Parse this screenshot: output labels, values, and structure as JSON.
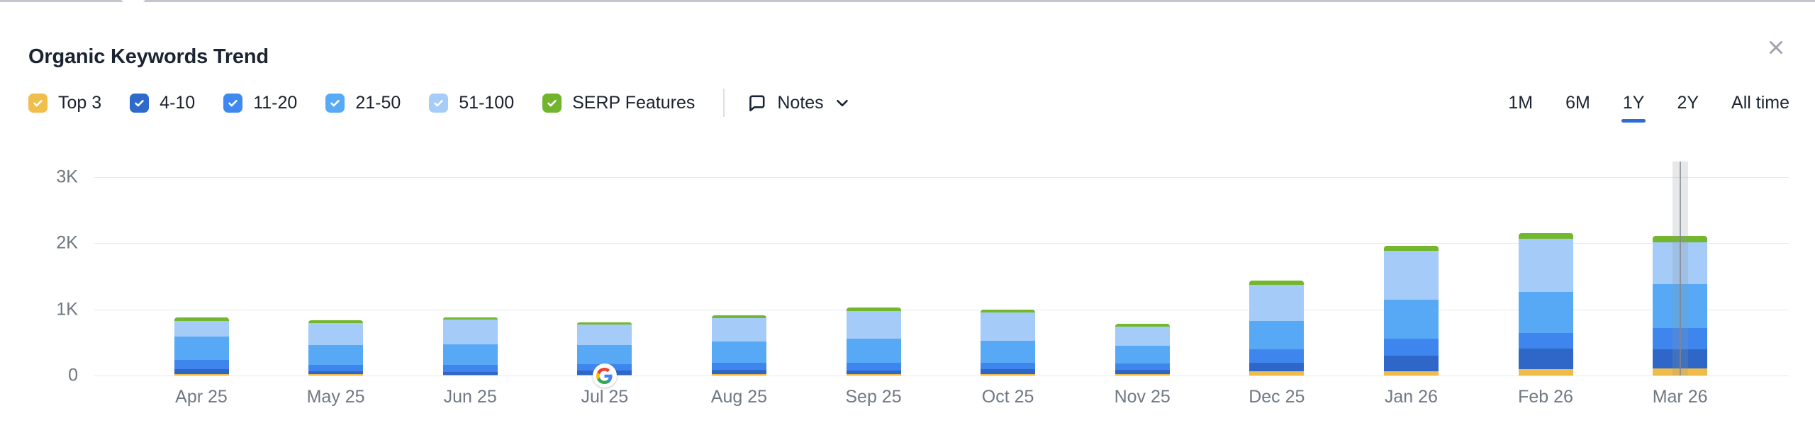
{
  "header": {
    "title": "Organic Keywords Trend",
    "close": "close"
  },
  "legend": {
    "items": [
      {
        "label": "Top 3",
        "color": "#F0BE4B",
        "checked": true
      },
      {
        "label": "4-10",
        "color": "#2E6ACB",
        "checked": true
      },
      {
        "label": "11-20",
        "color": "#3F88EF",
        "checked": true
      },
      {
        "label": "21-50",
        "color": "#58AAF5",
        "checked": true
      },
      {
        "label": "51-100",
        "color": "#A6CCF8",
        "checked": true
      },
      {
        "label": "SERP Features",
        "color": "#72B52D",
        "checked": true
      }
    ]
  },
  "notes": {
    "label": "Notes"
  },
  "time_ranges": {
    "options": [
      "1M",
      "6M",
      "1Y",
      "2Y",
      "All time"
    ],
    "active": "1Y",
    "accent": "#2E6BD9"
  },
  "chart_data": {
    "type": "bar",
    "stacked": true,
    "title": "Organic Keywords Trend",
    "xlabel": "",
    "ylabel": "",
    "ylim": [
      0,
      3200
    ],
    "grid": "horizontal",
    "legend_position": "top-left",
    "y_ticks": [
      {
        "label": "0",
        "value": 0
      },
      {
        "label": "1K",
        "value": 1000
      },
      {
        "label": "2K",
        "value": 2000
      },
      {
        "label": "3K",
        "value": 3000
      }
    ],
    "categories": [
      "Apr 25",
      "May 25",
      "Jun 25",
      "Jul 25",
      "Aug 25",
      "Sep 25",
      "Oct 25",
      "Nov 25",
      "Dec 25",
      "Jan 26",
      "Feb 26",
      "Mar 26"
    ],
    "series": [
      {
        "name": "Top 3",
        "color": "#F0BC49",
        "values": [
          20,
          18,
          14,
          11,
          18,
          25,
          18,
          25,
          64,
          64,
          100,
          105
        ]
      },
      {
        "name": "4-10",
        "color": "#2E67C8",
        "values": [
          75,
          47,
          43,
          61,
          72,
          54,
          82,
          64,
          130,
          235,
          305,
          290
        ]
      },
      {
        "name": "11-20",
        "color": "#3E86EE",
        "values": [
          140,
          94,
          107,
          97,
          107,
          118,
          97,
          97,
          205,
          260,
          235,
          320
        ]
      },
      {
        "name": "21-50",
        "color": "#57A9F5",
        "values": [
          350,
          298,
          305,
          297,
          322,
          358,
          333,
          261,
          430,
          590,
          625,
          670
        ]
      },
      {
        "name": "51-100",
        "color": "#A5CBF8",
        "values": [
          245,
          341,
          375,
          304,
          350,
          422,
          422,
          293,
          545,
          740,
          805,
          630
        ]
      },
      {
        "name": "SERP Features",
        "color": "#74B62E",
        "values": [
          45,
          36,
          36,
          36,
          43,
          50,
          43,
          47,
          65,
          70,
          85,
          95
        ]
      }
    ],
    "totals": [
      875,
      834,
      880,
      806,
      912,
      1027,
      995,
      787,
      1439,
      1959,
      2155,
      2110
    ],
    "annotations": [
      {
        "type": "note-marker",
        "icon": "google-g",
        "category": "Jul 25"
      },
      {
        "type": "hover-highlight",
        "category": "Mar 26"
      }
    ]
  }
}
